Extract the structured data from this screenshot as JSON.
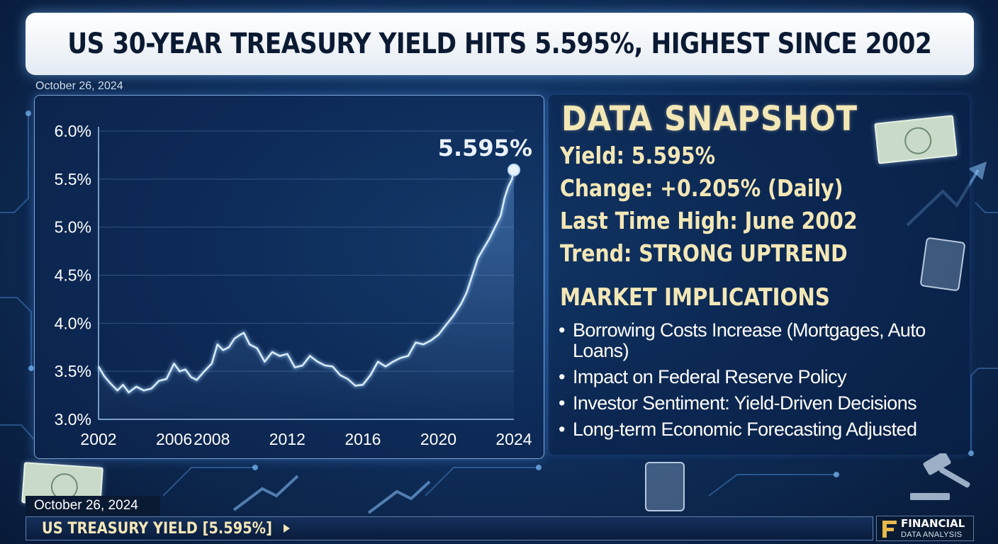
{
  "headline": "US 30-YEAR TREASURY YIELD HITS 5.595%, HIGHEST SINCE 2002",
  "date_top": "October 26, 2024",
  "chart_data": {
    "type": "line",
    "title": "",
    "xlabel": "",
    "ylabel": "",
    "xlim": [
      2002,
      2024
    ],
    "ylim": [
      3.0,
      6.0
    ],
    "grid": true,
    "x_ticks": [
      "2002",
      "2006",
      "2008",
      "2012",
      "2016",
      "2020",
      "2024"
    ],
    "y_ticks": [
      "6.0%",
      "5.5%",
      "5.0%",
      "4.5%",
      "4.0%",
      "3.5%",
      "3.0%"
    ],
    "peak_label": "5.595%",
    "series": [
      {
        "x": [
          2002.0,
          2002.3,
          2002.6,
          2003.0,
          2003.3,
          2003.6,
          2004.0,
          2004.4,
          2004.8,
          2005.2,
          2005.6,
          2006.0,
          2006.3,
          2006.6,
          2006.9,
          2007.2,
          2007.6,
          2008.0,
          2008.3,
          2008.6,
          2008.9,
          2009.2,
          2009.5,
          2009.7,
          2010.0,
          2010.4,
          2010.8,
          2011.2,
          2011.6,
          2012.0,
          2012.4,
          2012.8,
          2013.2,
          2013.6,
          2014.0,
          2014.4,
          2014.8,
          2015.2,
          2015.6,
          2016.0,
          2016.4,
          2016.8,
          2017.2,
          2017.6,
          2018.0,
          2018.4,
          2018.8,
          2019.2,
          2019.6,
          2020.0,
          2020.4,
          2020.8,
          2021.2,
          2021.5,
          2021.8,
          2022.1,
          2022.4,
          2022.7,
          2023.0,
          2023.3,
          2023.5,
          2023.7,
          2023.9,
          2024.0
        ],
        "y": [
          3.55,
          3.45,
          3.38,
          3.3,
          3.36,
          3.28,
          3.34,
          3.3,
          3.32,
          3.4,
          3.42,
          3.58,
          3.5,
          3.52,
          3.44,
          3.41,
          3.5,
          3.58,
          3.78,
          3.72,
          3.75,
          3.84,
          3.88,
          3.9,
          3.78,
          3.74,
          3.6,
          3.7,
          3.66,
          3.68,
          3.54,
          3.56,
          3.66,
          3.6,
          3.56,
          3.55,
          3.46,
          3.42,
          3.35,
          3.36,
          3.46,
          3.6,
          3.55,
          3.6,
          3.64,
          3.66,
          3.8,
          3.78,
          3.82,
          3.88,
          3.98,
          4.08,
          4.2,
          4.32,
          4.5,
          4.68,
          4.78,
          4.88,
          5.0,
          5.12,
          5.3,
          5.42,
          5.5,
          5.595
        ]
      }
    ]
  },
  "snapshot": {
    "title": "DATA SNAPSHOT",
    "yield_line": "Yield: 5.595%",
    "change_line": "Change: +0.205% (Daily)",
    "last_high_line": "Last Time High: June 2002",
    "trend_line": "Trend: STRONG UPTREND"
  },
  "implications": {
    "title": "MARKET IMPLICATIONS",
    "items": [
      "Borrowing Costs Increase (Mortgages, Auto Loans)",
      "Impact on Federal Reserve Policy",
      "Investor Sentiment: Yield-Driven Decisions",
      "Long-term Economic Forecasting Adjusted"
    ]
  },
  "date_bottom": "October 26, 2024",
  "ticker": "US TREASURY YIELD [5.595%]",
  "brand": {
    "name": "FINANCIAL",
    "sub": "DATA ANALYSIS"
  },
  "colors": {
    "line": "#d9ebff",
    "accent_text": "#f3e7b6",
    "grid": "#5e86b8"
  }
}
